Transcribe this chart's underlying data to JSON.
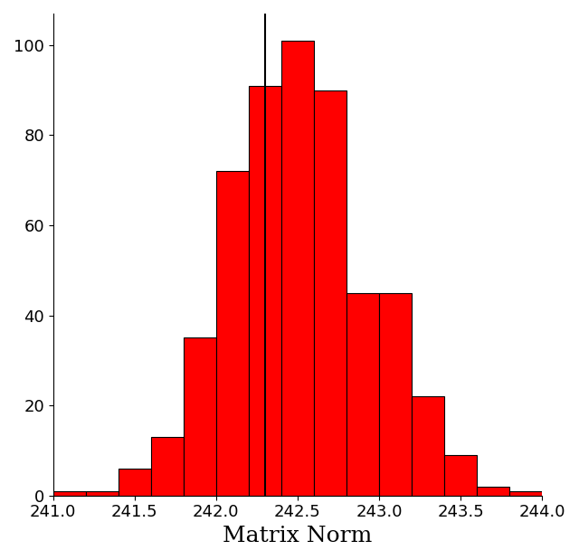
{
  "bin_left_edges": [
    241.0,
    241.1,
    241.2,
    241.3,
    241.4,
    241.6,
    241.8,
    242.0,
    242.2,
    242.3,
    242.5,
    242.7,
    242.8,
    243.0,
    243.2,
    243.4,
    243.8
  ],
  "bin_widths": [
    0.1,
    0.1,
    0.1,
    0.1,
    0.2,
    0.2,
    0.2,
    0.2,
    0.1,
    0.2,
    0.2,
    0.1,
    0.2,
    0.2,
    0.2,
    0.4,
    0.2
  ],
  "counts": [
    1,
    1,
    0,
    0,
    6,
    13,
    35,
    72,
    91,
    101,
    90,
    45,
    45,
    22,
    9,
    2,
    1
  ],
  "bar_color": "#FF0000",
  "bar_edgecolor": "#000000",
  "bar_linewidth": 0.8,
  "vline_x": 242.3,
  "vline_color": "#000000",
  "vline_lw": 1.5,
  "xlabel": "Matrix Norm",
  "xlabel_fontsize": 18,
  "xlim": [
    241.0,
    244.0
  ],
  "ylim": [
    0,
    107
  ],
  "yticks": [
    0,
    20,
    40,
    60,
    80,
    100
  ],
  "xticks": [
    241.0,
    241.5,
    242.0,
    242.5,
    243.0,
    243.5,
    244.0
  ],
  "tick_fontsize": 13,
  "background_color": "#FFFFFF",
  "figsize": [
    6.4,
    6.19
  ],
  "dpi": 100
}
